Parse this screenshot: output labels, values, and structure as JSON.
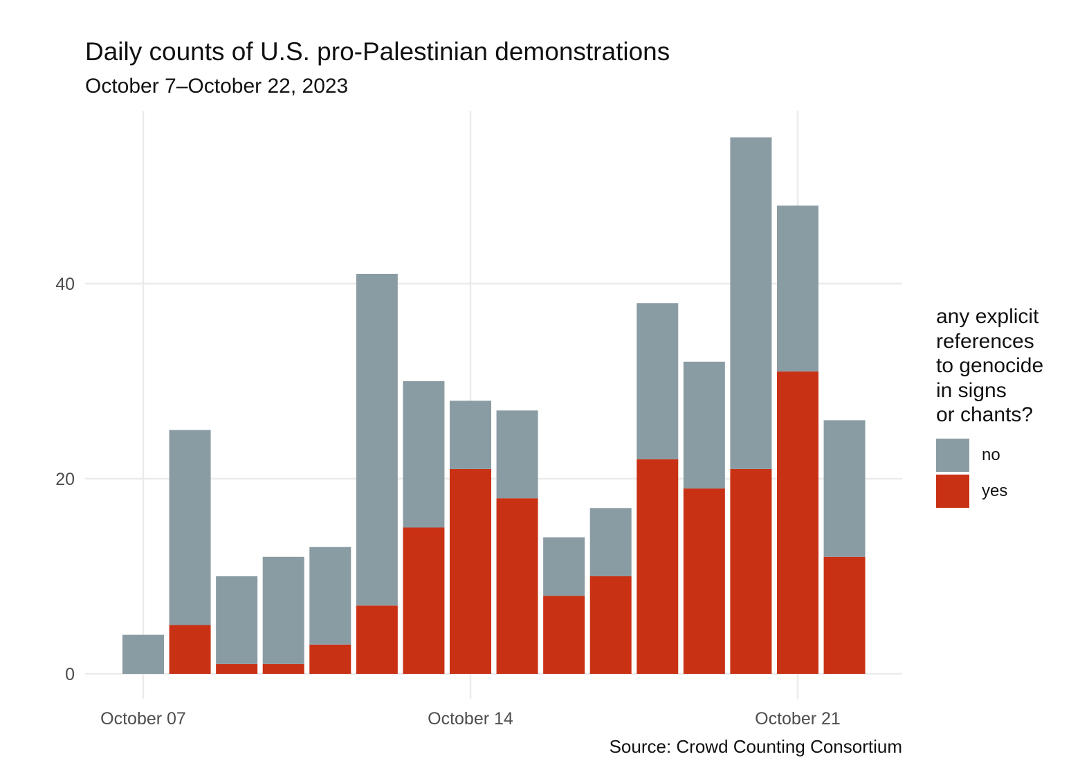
{
  "chart_data": {
    "type": "bar",
    "stacked": true,
    "title": "Daily counts of U.S. pro-Palestinian demonstrations",
    "subtitle": "October 7–October 22, 2023",
    "caption": "Source: Crowd Counting Consortium",
    "xlabel": "",
    "ylabel": "",
    "categories": [
      "2023-10-07",
      "2023-10-08",
      "2023-10-09",
      "2023-10-10",
      "2023-10-11",
      "2023-10-12",
      "2023-10-13",
      "2023-10-14",
      "2023-10-15",
      "2023-10-16",
      "2023-10-17",
      "2023-10-18",
      "2023-10-19",
      "2023-10-20",
      "2023-10-21",
      "2023-10-22"
    ],
    "x_ticks": [
      {
        "date": "2023-10-07",
        "label": "October 07"
      },
      {
        "date": "2023-10-14",
        "label": "October 14"
      },
      {
        "date": "2023-10-21",
        "label": "October 21"
      }
    ],
    "y_ticks": [
      0,
      20,
      40
    ],
    "ylim": [
      0,
      55
    ],
    "grid": true,
    "legend": {
      "title": "any explicit\nreferences\nto genocide\nin signs\nor chants?",
      "position": "right"
    },
    "series": [
      {
        "name": "yes",
        "color": "#c93114",
        "values": [
          0,
          5,
          1,
          1,
          3,
          7,
          15,
          21,
          18,
          8,
          10,
          22,
          19,
          21,
          31,
          12
        ]
      },
      {
        "name": "no",
        "color": "#8a9ca3",
        "values": [
          4,
          20,
          9,
          11,
          10,
          34,
          15,
          7,
          9,
          6,
          7,
          16,
          13,
          34,
          17,
          14
        ]
      }
    ]
  }
}
